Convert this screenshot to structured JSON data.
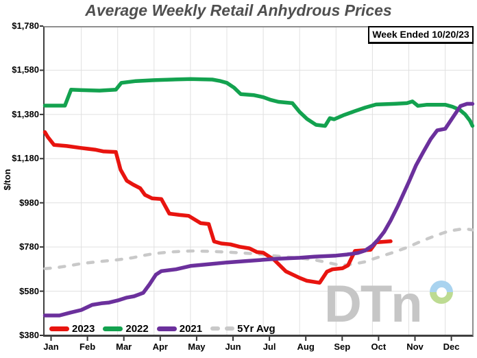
{
  "title": "Average Weekly Retail Anhydrous Prices",
  "badge": "Week Ended 10/20/23",
  "watermark": {
    "brand_text": "DTn",
    "gray": "#c6c6c6",
    "donut_blue": "#a9d3ef",
    "donut_green": "#bddb92"
  },
  "chart_data": {
    "type": "line",
    "title": "Average Weekly Retail Anhydrous Prices",
    "xlabel": "",
    "ylabel": "$/ton",
    "ylim": [
      380,
      1780
    ],
    "grid": true,
    "legend_position": "bottom-left-inside",
    "y_axis": {
      "title": "$/ton",
      "ticks": [
        {
          "label": "$1,780",
          "value": 1780
        },
        {
          "label": "$1,580",
          "value": 1580
        },
        {
          "label": "$1,380",
          "value": 1380
        },
        {
          "label": "$1,180",
          "value": 1180
        },
        {
          "label": "$980",
          "value": 980
        },
        {
          "label": "$780",
          "value": 780
        },
        {
          "label": "$580",
          "value": 580
        },
        {
          "label": "$380",
          "value": 380
        }
      ]
    },
    "x_axis": {
      "months": [
        "Jan",
        "Feb",
        "Mar",
        "Apr",
        "May",
        "Jun",
        "Jul",
        "Aug",
        "Sep",
        "Oct",
        "Nov",
        "Dec"
      ]
    },
    "series": [
      {
        "name": "5Yr Avg",
        "color": "#c9c9c9",
        "style": "dashed",
        "points": [
          [
            0.0,
            682
          ],
          [
            0.3,
            686
          ],
          [
            0.7,
            696
          ],
          [
            1.0,
            705
          ],
          [
            1.5,
            714
          ],
          [
            2.0,
            722
          ],
          [
            2.4,
            731
          ],
          [
            2.75,
            743
          ],
          [
            3.0,
            750
          ],
          [
            3.4,
            757
          ],
          [
            3.8,
            761
          ],
          [
            4.1,
            762
          ],
          [
            4.6,
            760
          ],
          [
            5.0,
            757
          ],
          [
            5.4,
            753
          ],
          [
            5.8,
            749
          ],
          [
            6.0,
            746
          ],
          [
            6.3,
            740
          ],
          [
            6.7,
            734
          ],
          [
            7.0,
            730
          ],
          [
            7.4,
            722
          ],
          [
            7.7,
            712
          ],
          [
            8.0,
            701
          ],
          [
            8.2,
            698
          ],
          [
            8.5,
            703
          ],
          [
            8.8,
            713
          ],
          [
            9.0,
            725
          ],
          [
            9.3,
            741
          ],
          [
            9.6,
            757
          ],
          [
            10.0,
            781
          ],
          [
            10.3,
            803
          ],
          [
            10.6,
            823
          ],
          [
            10.9,
            841
          ],
          [
            11.1,
            852
          ],
          [
            11.4,
            860
          ],
          [
            11.6,
            861
          ],
          [
            11.75,
            857
          ]
        ]
      },
      {
        "name": "2023",
        "color": "#e8140f",
        "style": "solid",
        "points": [
          [
            0.0,
            1300
          ],
          [
            0.08,
            1278
          ],
          [
            0.25,
            1242
          ],
          [
            0.6,
            1237
          ],
          [
            1.0,
            1228
          ],
          [
            1.4,
            1220
          ],
          [
            1.6,
            1213
          ],
          [
            1.95,
            1210
          ],
          [
            2.08,
            1130
          ],
          [
            2.25,
            1080
          ],
          [
            2.42,
            1063
          ],
          [
            2.62,
            1046
          ],
          [
            2.75,
            1016
          ],
          [
            2.95,
            1000
          ],
          [
            3.2,
            997
          ],
          [
            3.42,
            931
          ],
          [
            3.7,
            925
          ],
          [
            3.95,
            921
          ],
          [
            4.28,
            888
          ],
          [
            4.5,
            884
          ],
          [
            4.65,
            805
          ],
          [
            4.85,
            796
          ],
          [
            5.1,
            792
          ],
          [
            5.35,
            781
          ],
          [
            5.62,
            774
          ],
          [
            5.83,
            757
          ],
          [
            6.0,
            754
          ],
          [
            6.3,
            722
          ],
          [
            6.62,
            670
          ],
          [
            7.0,
            640
          ],
          [
            7.2,
            627
          ],
          [
            7.55,
            618
          ],
          [
            7.75,
            668
          ],
          [
            7.9,
            679
          ],
          [
            8.18,
            684
          ],
          [
            8.33,
            697
          ],
          [
            8.52,
            762
          ],
          [
            8.95,
            767
          ],
          [
            9.1,
            801
          ],
          [
            9.5,
            806
          ]
        ]
      },
      {
        "name": "2022",
        "color": "#13a24f",
        "style": "solid",
        "points": [
          [
            0.0,
            1420
          ],
          [
            0.55,
            1420
          ],
          [
            0.72,
            1492
          ],
          [
            1.0,
            1490
          ],
          [
            1.5,
            1488
          ],
          [
            1.95,
            1492
          ],
          [
            2.1,
            1523
          ],
          [
            2.5,
            1531
          ],
          [
            3.0,
            1535
          ],
          [
            3.5,
            1538
          ],
          [
            4.0,
            1540
          ],
          [
            4.6,
            1538
          ],
          [
            4.8,
            1532
          ],
          [
            5.0,
            1523
          ],
          [
            5.2,
            1501
          ],
          [
            5.38,
            1472
          ],
          [
            5.75,
            1467
          ],
          [
            6.0,
            1458
          ],
          [
            6.2,
            1446
          ],
          [
            6.42,
            1437
          ],
          [
            6.8,
            1431
          ],
          [
            7.0,
            1391
          ],
          [
            7.2,
            1360
          ],
          [
            7.45,
            1333
          ],
          [
            7.7,
            1328
          ],
          [
            7.83,
            1363
          ],
          [
            7.95,
            1358
          ],
          [
            8.2,
            1376
          ],
          [
            8.5,
            1394
          ],
          [
            8.8,
            1411
          ],
          [
            9.1,
            1425
          ],
          [
            9.6,
            1428
          ],
          [
            9.95,
            1431
          ],
          [
            10.1,
            1439
          ],
          [
            10.25,
            1419
          ],
          [
            10.5,
            1424
          ],
          [
            11.0,
            1424
          ],
          [
            11.2,
            1415
          ],
          [
            11.4,
            1401
          ],
          [
            11.55,
            1380
          ],
          [
            11.68,
            1352
          ],
          [
            11.75,
            1328
          ]
        ]
      },
      {
        "name": "2021",
        "color": "#6b309c",
        "style": "solid",
        "points": [
          [
            0.0,
            470
          ],
          [
            0.4,
            470
          ],
          [
            0.7,
            483
          ],
          [
            1.0,
            495
          ],
          [
            1.3,
            518
          ],
          [
            1.55,
            525
          ],
          [
            1.75,
            528
          ],
          [
            2.0,
            538
          ],
          [
            2.25,
            551
          ],
          [
            2.45,
            557
          ],
          [
            2.7,
            572
          ],
          [
            2.88,
            612
          ],
          [
            3.05,
            655
          ],
          [
            3.2,
            671
          ],
          [
            3.6,
            679
          ],
          [
            4.0,
            694
          ],
          [
            4.5,
            702
          ],
          [
            5.0,
            710
          ],
          [
            5.5,
            716
          ],
          [
            6.0,
            722
          ],
          [
            6.4,
            727
          ],
          [
            7.0,
            731
          ],
          [
            7.4,
            736
          ],
          [
            8.0,
            741
          ],
          [
            8.3,
            746
          ],
          [
            8.6,
            753
          ],
          [
            8.8,
            764
          ],
          [
            9.0,
            786
          ],
          [
            9.15,
            812
          ],
          [
            9.32,
            848
          ],
          [
            9.5,
            900
          ],
          [
            9.7,
            966
          ],
          [
            10.0,
            1074
          ],
          [
            10.2,
            1150
          ],
          [
            10.4,
            1210
          ],
          [
            10.6,
            1268
          ],
          [
            10.78,
            1308
          ],
          [
            11.0,
            1315
          ],
          [
            11.2,
            1364
          ],
          [
            11.42,
            1418
          ],
          [
            11.6,
            1428
          ],
          [
            11.75,
            1428
          ]
        ]
      }
    ],
    "legend": [
      "2023",
      "2022",
      "2021",
      "5Yr Avg"
    ],
    "colors": {
      "gridline": "#e0e0e0",
      "axis_dark": "#3f3f3f",
      "axis_light": "#8e8e8e",
      "title_text": "#4f4f4f"
    }
  }
}
